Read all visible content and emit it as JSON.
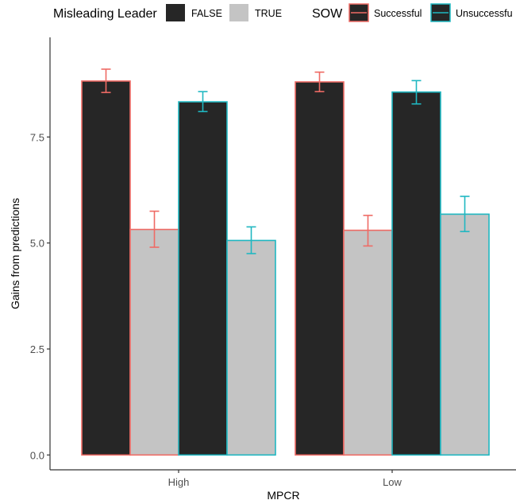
{
  "colors": {
    "fill_false": "#262626",
    "fill_true": "#c4c4c4",
    "sow_successful": "#ef6b65",
    "sow_unsuccessful": "#1fb7c1",
    "axis": "#333333",
    "axis_text": "#4d4d4d"
  },
  "legend": {
    "fill_title": "Misleading Leader",
    "fill_items": [
      {
        "label": "FALSE",
        "key": "fill_false"
      },
      {
        "label": "TRUE",
        "key": "fill_true"
      }
    ],
    "color_title": "SOW",
    "color_items": [
      {
        "label": "Successful",
        "key": "sow_successful"
      },
      {
        "label": "Unsuccessfu",
        "key": "sow_unsuccessful"
      }
    ]
  },
  "chart_data": {
    "type": "bar",
    "xlabel": "MPCR",
    "ylabel": "Gains from predictions",
    "ylim": [
      -0.35,
      9.85
    ],
    "yticks": [
      0.0,
      2.5,
      5.0,
      7.5
    ],
    "ytick_labels": [
      "0.0",
      "2.5",
      "5.0",
      "7.5"
    ],
    "categories": [
      "High",
      "Low"
    ],
    "legend_position": "top",
    "grid": false,
    "series": [
      {
        "sow": "Successful",
        "misleading_leader": "FALSE",
        "values": [
          8.82,
          8.8
        ],
        "err_low": [
          8.55,
          8.57
        ],
        "err_high": [
          9.1,
          9.03
        ]
      },
      {
        "sow": "Successful",
        "misleading_leader": "TRUE",
        "values": [
          5.32,
          5.3
        ],
        "err_low": [
          4.9,
          4.93
        ],
        "err_high": [
          5.75,
          5.65
        ]
      },
      {
        "sow": "Unsuccessful",
        "misleading_leader": "FALSE",
        "values": [
          8.33,
          8.56
        ],
        "err_low": [
          8.1,
          8.28
        ],
        "err_high": [
          8.57,
          8.83
        ]
      },
      {
        "sow": "Unsuccessful",
        "misleading_leader": "TRUE",
        "values": [
          5.06,
          5.68
        ],
        "err_low": [
          4.75,
          5.27
        ],
        "err_high": [
          5.38,
          6.1
        ]
      }
    ]
  }
}
